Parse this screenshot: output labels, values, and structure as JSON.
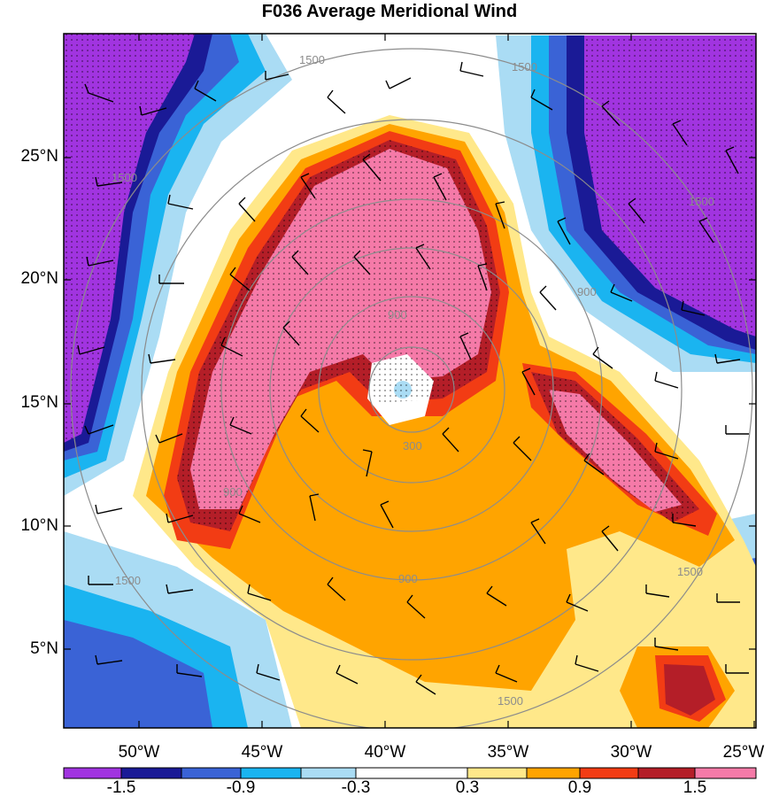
{
  "title": "F036 Average Meridional Wind",
  "lat_labels": [
    "25°N",
    "20°N",
    "15°N",
    "10°N",
    "5°N"
  ],
  "lon_labels": [
    "50°W",
    "45°W",
    "40°W",
    "35°W",
    "30°W",
    "25°W"
  ],
  "contour_labels": [
    "1500",
    "1500",
    "1500",
    "1500",
    "900",
    "900",
    "900",
    "900",
    "300",
    "1500",
    "1500",
    "1500"
  ],
  "colorbar": {
    "labels": [
      "-1.5",
      "-0.9",
      "-0.3",
      "0.3",
      "0.9",
      "1.5"
    ],
    "colors": [
      "#a134e0",
      "#1a1a96",
      "#3a63d6",
      "#1ab4f0",
      "#aadcf4",
      "#ffffff",
      "#ffe88a",
      "#ffa400",
      "#f23c14",
      "#b41e28",
      "#f57aa8"
    ]
  }
}
